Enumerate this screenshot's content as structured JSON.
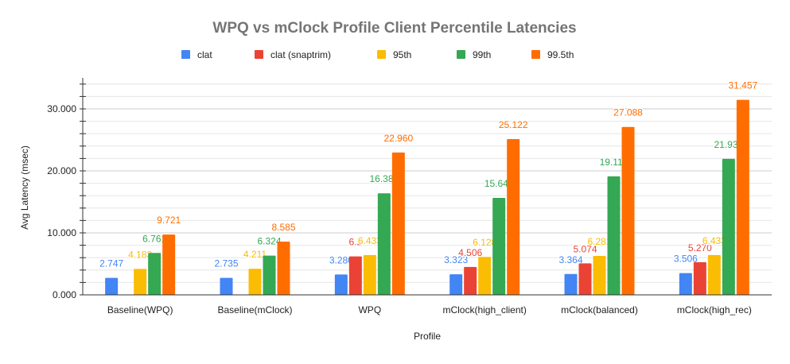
{
  "chart_data": {
    "type": "bar",
    "title": "WPQ vs mClock Profile Client Percentile Latencies",
    "xlabel": "Profile",
    "ylabel": "Avg Latency (msec)",
    "ylim": [
      0,
      35
    ],
    "yticks": [
      "0.000",
      "10.000",
      "20.000",
      "30.000"
    ],
    "ytick_values": [
      0,
      10,
      20,
      30
    ],
    "grid": true,
    "legend_position": "top",
    "categories": [
      "Baseline(WPQ)",
      "Baseline(mClock)",
      "WPQ",
      "mClock(high_client)",
      "mClock(balanced)",
      "mClock(high_rec)"
    ],
    "series": [
      {
        "name": "clat",
        "color": "#4285F4",
        "values": [
          2.747,
          2.735,
          3.28,
          3.323,
          3.364,
          3.506
        ],
        "labels": [
          "2.747",
          "2.735",
          "3.280",
          "3.323",
          "3.364",
          "3.506"
        ]
      },
      {
        "name": "clat (snaptrim)",
        "color": "#EA4335",
        "values": [
          null,
          null,
          6.2,
          4.506,
          5.074,
          5.27
        ],
        "labels": [
          "",
          "",
          "6.2",
          "4.506",
          "5.074",
          "5.270"
        ]
      },
      {
        "name": "95th",
        "color": "#FBBC04",
        "values": [
          4.183,
          4.211,
          6.433,
          6.128,
          6.281,
          6.433
        ],
        "labels": [
          "4.183",
          "4.211",
          "6.433",
          "6.128",
          "6.281",
          "6.433"
        ]
      },
      {
        "name": "99th",
        "color": "#34A853",
        "values": [
          6.761,
          6.324,
          16.384,
          15.642,
          19.115,
          21.933
        ],
        "labels": [
          "6.761",
          "6.324",
          "16.384",
          "15.642",
          "19.115",
          "21.933"
        ]
      },
      {
        "name": "99.5th",
        "color": "#FF6D01",
        "values": [
          9.721,
          8.585,
          22.96,
          25.122,
          27.088,
          31.457
        ],
        "labels": [
          "9.721",
          "8.585",
          "22.960",
          "25.122",
          "27.088",
          "31.457"
        ]
      }
    ]
  }
}
